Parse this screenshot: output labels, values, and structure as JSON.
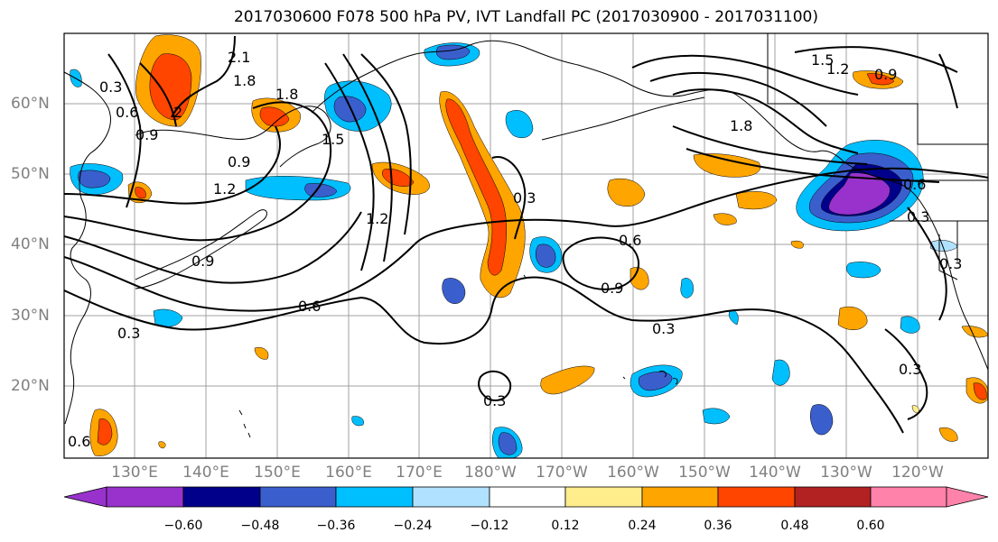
{
  "title": "2017030600 F078 500 hPa PV, IVT Landfall PC (2017030900 - 2017031100)",
  "lat_labels": [
    "60°N",
    "50°N",
    "40°N",
    "30°N",
    "20°N"
  ],
  "lon_labels": [
    "130°E",
    "140°E",
    "150°E",
    "160°E",
    "170°E",
    "180°W",
    "170°W",
    "160°W",
    "150°W",
    "140°W",
    "130°W",
    "120°W"
  ],
  "contour_labels": [
    "2.1",
    "1.8",
    "0.3",
    "0.6",
    "0.9",
    "2",
    "0.9",
    "1.2",
    "1.5",
    "1.8",
    "0.9",
    "1.2",
    "0.3",
    "0.6",
    "0.9",
    "0.6",
    "0.3",
    "0.3",
    "0.9",
    "1.2",
    "1.5",
    "1.8",
    "0.6",
    "0.3",
    "0.3",
    "0.3",
    "0.3",
    "0.6"
  ],
  "colorbar": {
    "colors": [
      "#9932cc",
      "#00008b",
      "#3a5fcd",
      "#00bfff",
      "#b0e2ff",
      "#ffffff",
      "#ffec8b",
      "#ffa500",
      "#ff4500",
      "#b22222",
      "#ff82ab"
    ],
    "tick_labels": [
      "−0.60",
      "−0.48",
      "−0.36",
      "−0.24",
      "−0.12",
      "0.12",
      "0.24",
      "0.36",
      "0.48",
      "0.60"
    ]
  }
}
